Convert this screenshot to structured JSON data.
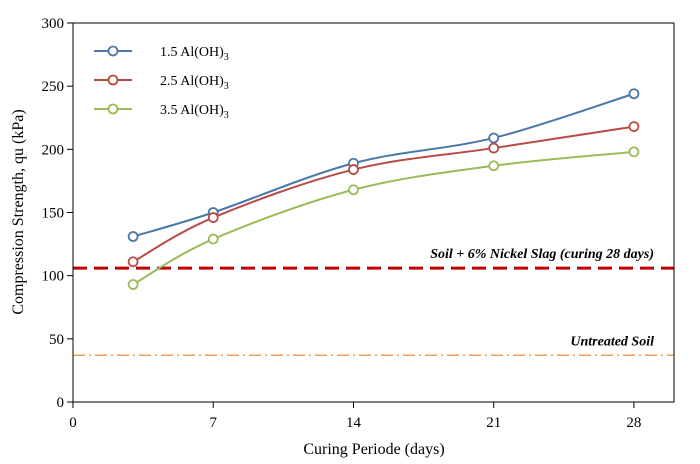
{
  "chart_data": {
    "type": "line",
    "title": "",
    "xlabel": "Curing Periode (days)",
    "ylabel": "Compression Strength, qu (kPa)",
    "xlim": [
      0,
      30
    ],
    "ylim": [
      0,
      300
    ],
    "xticks": [
      0,
      7,
      14,
      21,
      28
    ],
    "yticks": [
      0,
      50,
      100,
      150,
      200,
      250,
      300
    ],
    "grid": false,
    "legend_position": "top-left",
    "series": [
      {
        "name": "1.5 Al(OH)",
        "subscript": "3",
        "color": "#4a78a8",
        "x": [
          3,
          7,
          14,
          21,
          28
        ],
        "values": [
          131,
          150,
          189,
          209,
          244
        ]
      },
      {
        "name": "2.5 Al(OH)",
        "subscript": "3",
        "color": "#b84b45",
        "x": [
          3,
          7,
          14,
          21,
          28
        ],
        "values": [
          111,
          146,
          184,
          201,
          218
        ]
      },
      {
        "name": "3.5 Al(OH)",
        "subscript": "3",
        "color": "#9bbb59",
        "x": [
          3,
          7,
          14,
          21,
          28
        ],
        "values": [
          93,
          129,
          168,
          187,
          198
        ]
      }
    ],
    "reference_lines": [
      {
        "label": "Soil + 6% Nickel Slag (curing 28 days)",
        "value": 106,
        "color": "#c00000",
        "style": "dashed"
      },
      {
        "label": "Untreated Soil",
        "value": 37,
        "color": "#f0a050",
        "style": "dash-dot"
      }
    ]
  }
}
